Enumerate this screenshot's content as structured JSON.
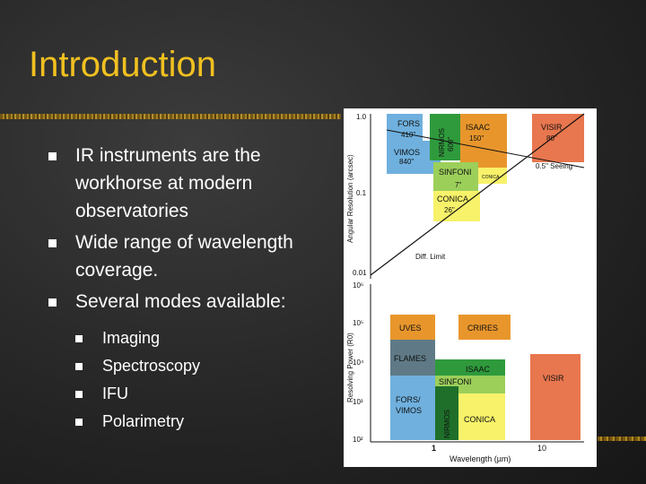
{
  "slide": {
    "title": "Introduction",
    "bullets": [
      "IR instruments are the workhorse at modern observatories",
      "Wide range of wavelength coverage.",
      "Several modes available:"
    ],
    "sub_bullets": [
      "Imaging",
      "Spectroscopy",
      "IFU",
      "Polarimetry"
    ]
  },
  "figure": {
    "top_ylabel": "Angular Resolution (arcsec)",
    "bottom_ylabel": "Resolving Power (R0)",
    "xlabel": "Wavelength (µm)",
    "top_ticks": [
      "1.0",
      "0.1",
      "0.01"
    ],
    "bottom_ticks": [
      "10⁶",
      "10⁵",
      "10⁴",
      "10³",
      "10²"
    ],
    "x_ticks": [
      "1",
      "10"
    ],
    "seeing_label": "0.5\" Seeing",
    "diff_label": "Diff. Limit",
    "top_boxes": {
      "fors": "FORS",
      "fors_v": "410\"",
      "vimos": "VIMOS",
      "vimos_v": "840\"",
      "nirmos": "NIRMOS",
      "nirmos_v": "600\"",
      "isaac": "ISAAC",
      "isaac_v": "150\"",
      "visir": "VISIR",
      "visir_v": "80\"",
      "sinfoni": "SINFONI",
      "sinfoni_v": "7\"",
      "conica_small": "CONICA",
      "conica": "CONICA",
      "conica_v": "26\""
    },
    "bottom_boxes": {
      "uves": "UVES",
      "crires": "CRIRES",
      "flames": "FLAMES",
      "isaac": "ISAAC",
      "sinfoni": "SINFONI",
      "visir": "VISIR",
      "fors": "FORS/",
      "vimos": "VIMOS",
      "nirmos": "NIRMOS",
      "conica": "CONICA"
    },
    "colors": {
      "blue": "#6fb0de",
      "green": "#2f9a3c",
      "lightgreen": "#9ccf5a",
      "orange": "#e8962c",
      "salmon": "#e8764e",
      "yellow": "#f7f26a",
      "slate": "#5f7a86",
      "darkgreen": "#1f6f2a"
    }
  }
}
